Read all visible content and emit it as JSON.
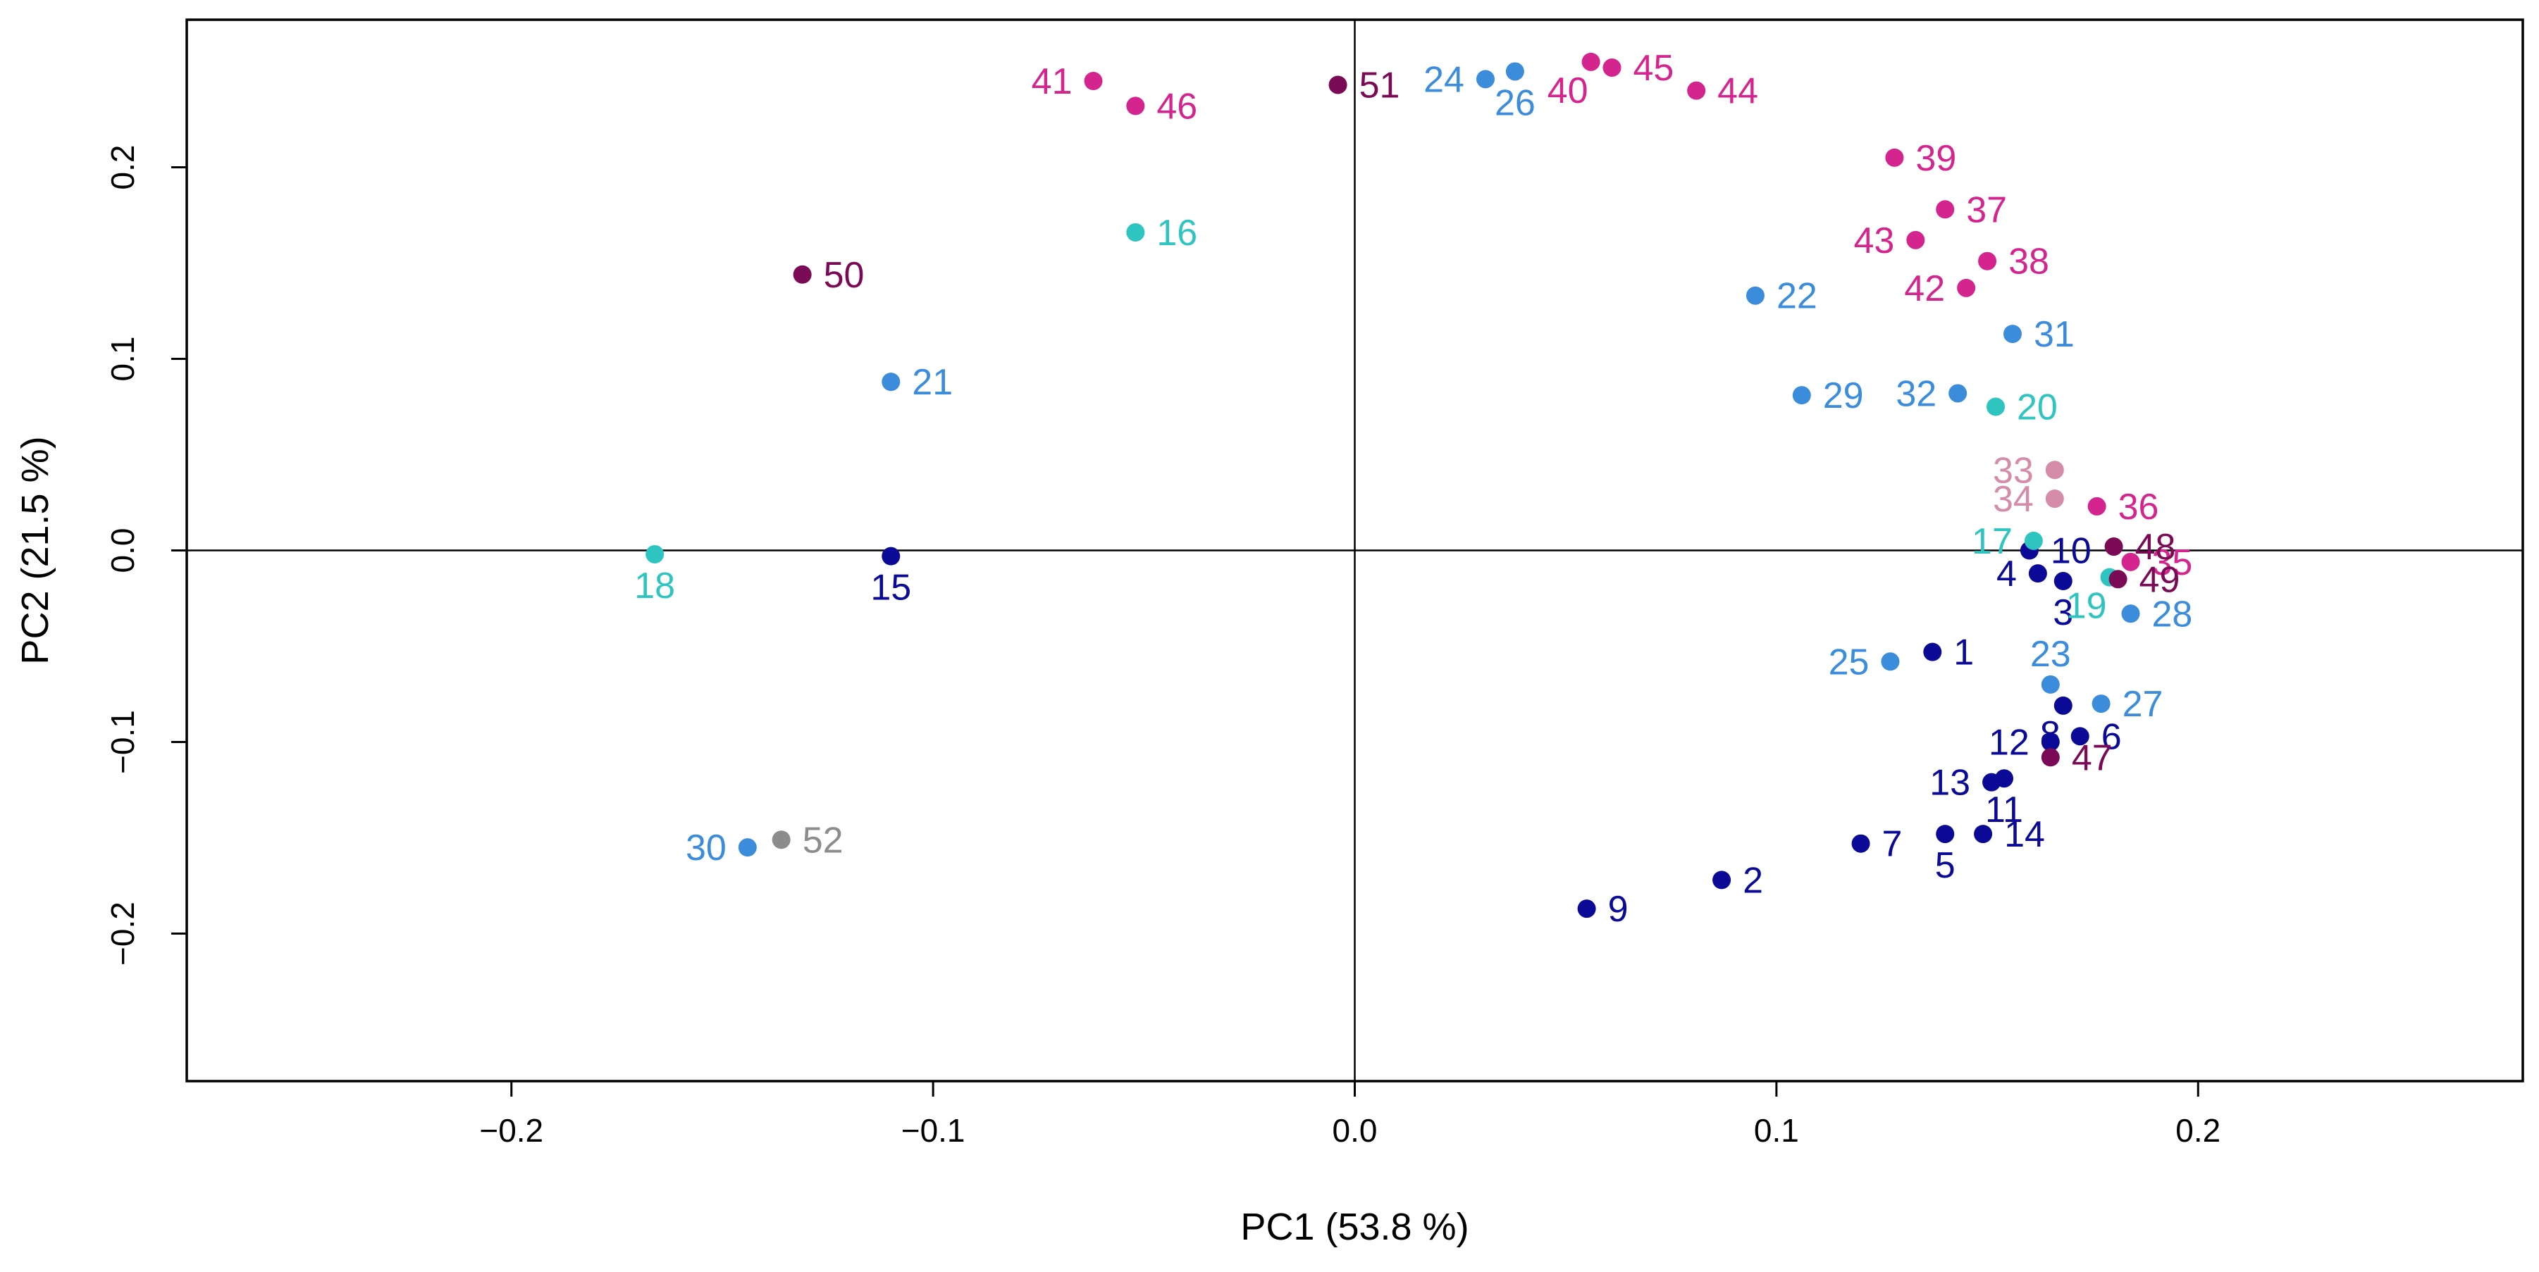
{
  "chart_data": {
    "type": "scatter",
    "title": "",
    "xlabel": "PC1 (53.8 %)",
    "ylabel": "PC2 (21.5 %)",
    "xlim": [
      -0.277,
      0.277
    ],
    "ylim": [
      -0.277,
      0.277
    ],
    "x_ticks": [
      -0.2,
      -0.1,
      0.0,
      0.1,
      0.2
    ],
    "x_tick_labels": [
      "−0.2",
      "−0.1",
      "0.0",
      "0.1",
      "0.2"
    ],
    "y_ticks": [
      -0.2,
      -0.1,
      0.0,
      0.1,
      0.2
    ],
    "y_tick_labels": [
      "−0.2",
      "−0.1",
      "0.0",
      "0.1",
      "0.2"
    ],
    "reference_lines": {
      "x": 0,
      "y": 0
    },
    "colors": {
      "navy": "#0a0a96",
      "sky": "#3c8cdc",
      "teal": "#2ec4c0",
      "magenta": "#d4258f",
      "plum": "#7a0a55",
      "rose": "#d48ca8",
      "gray": "#8c8c8c"
    },
    "points": [
      {
        "id": "1",
        "x": 0.137,
        "y": -0.053,
        "color": "navy",
        "pos": "right"
      },
      {
        "id": "2",
        "x": 0.087,
        "y": -0.172,
        "color": "navy",
        "pos": "right"
      },
      {
        "id": "3",
        "x": 0.168,
        "y": -0.016,
        "color": "navy",
        "pos": "below"
      },
      {
        "id": "4",
        "x": 0.162,
        "y": -0.012,
        "color": "navy",
        "pos": "left"
      },
      {
        "id": "5",
        "x": 0.14,
        "y": -0.148,
        "color": "navy",
        "pos": "below"
      },
      {
        "id": "6",
        "x": 0.172,
        "y": -0.097,
        "color": "navy",
        "pos": "right"
      },
      {
        "id": "7",
        "x": 0.12,
        "y": -0.153,
        "color": "navy",
        "pos": "right"
      },
      {
        "id": "8",
        "x": 0.168,
        "y": -0.081,
        "color": "navy",
        "pos": "belowleft"
      },
      {
        "id": "9",
        "x": 0.055,
        "y": -0.187,
        "color": "navy",
        "pos": "right"
      },
      {
        "id": "10",
        "x": 0.16,
        "y": 0.0,
        "color": "navy",
        "pos": "right"
      },
      {
        "id": "11",
        "x": 0.154,
        "y": -0.119,
        "color": "navy",
        "pos": "below"
      },
      {
        "id": "12",
        "x": 0.165,
        "y": -0.1,
        "color": "navy",
        "pos": "left"
      },
      {
        "id": "13",
        "x": 0.151,
        "y": -0.121,
        "color": "navy",
        "pos": "left"
      },
      {
        "id": "14",
        "x": 0.149,
        "y": -0.148,
        "color": "navy",
        "pos": "right"
      },
      {
        "id": "15",
        "x": -0.11,
        "y": -0.003,
        "color": "navy",
        "pos": "below"
      },
      {
        "id": "16",
        "x": -0.052,
        "y": 0.166,
        "color": "teal",
        "pos": "right"
      },
      {
        "id": "17",
        "x": 0.161,
        "y": 0.005,
        "color": "teal",
        "pos": "left"
      },
      {
        "id": "18",
        "x": -0.166,
        "y": -0.002,
        "color": "teal",
        "pos": "below"
      },
      {
        "id": "19",
        "x": 0.179,
        "y": -0.014,
        "color": "teal",
        "pos": "belowleft"
      },
      {
        "id": "20",
        "x": 0.152,
        "y": 0.075,
        "color": "teal",
        "pos": "right"
      },
      {
        "id": "21",
        "x": -0.11,
        "y": 0.088,
        "color": "sky",
        "pos": "right"
      },
      {
        "id": "22",
        "x": 0.095,
        "y": 0.133,
        "color": "sky",
        "pos": "right"
      },
      {
        "id": "23",
        "x": 0.165,
        "y": -0.07,
        "color": "sky",
        "pos": "above"
      },
      {
        "id": "24",
        "x": 0.031,
        "y": 0.246,
        "color": "sky",
        "pos": "left"
      },
      {
        "id": "25",
        "x": 0.127,
        "y": -0.058,
        "color": "sky",
        "pos": "left"
      },
      {
        "id": "26",
        "x": 0.038,
        "y": 0.25,
        "color": "sky",
        "pos": "below"
      },
      {
        "id": "27",
        "x": 0.177,
        "y": -0.08,
        "color": "sky",
        "pos": "right"
      },
      {
        "id": "28",
        "x": 0.184,
        "y": -0.033,
        "color": "sky",
        "pos": "right"
      },
      {
        "id": "29",
        "x": 0.106,
        "y": 0.081,
        "color": "sky",
        "pos": "right"
      },
      {
        "id": "30",
        "x": -0.144,
        "y": -0.155,
        "color": "sky",
        "pos": "left"
      },
      {
        "id": "31",
        "x": 0.156,
        "y": 0.113,
        "color": "sky",
        "pos": "right"
      },
      {
        "id": "32",
        "x": 0.143,
        "y": 0.082,
        "color": "sky",
        "pos": "left"
      },
      {
        "id": "33",
        "x": 0.166,
        "y": 0.042,
        "color": "rose",
        "pos": "left"
      },
      {
        "id": "34",
        "x": 0.166,
        "y": 0.027,
        "color": "rose",
        "pos": "left"
      },
      {
        "id": "35",
        "x": 0.184,
        "y": -0.006,
        "color": "magenta",
        "pos": "right"
      },
      {
        "id": "36",
        "x": 0.176,
        "y": 0.023,
        "color": "magenta",
        "pos": "right"
      },
      {
        "id": "37",
        "x": 0.14,
        "y": 0.178,
        "color": "magenta",
        "pos": "right"
      },
      {
        "id": "38",
        "x": 0.15,
        "y": 0.151,
        "color": "magenta",
        "pos": "right"
      },
      {
        "id": "39",
        "x": 0.128,
        "y": 0.205,
        "color": "magenta",
        "pos": "right"
      },
      {
        "id": "40",
        "x": 0.056,
        "y": 0.255,
        "color": "magenta",
        "pos": "belowleft"
      },
      {
        "id": "41",
        "x": -0.062,
        "y": 0.245,
        "color": "magenta",
        "pos": "left"
      },
      {
        "id": "42",
        "x": 0.145,
        "y": 0.137,
        "color": "magenta",
        "pos": "left"
      },
      {
        "id": "43",
        "x": 0.133,
        "y": 0.162,
        "color": "magenta",
        "pos": "left"
      },
      {
        "id": "44",
        "x": 0.081,
        "y": 0.24,
        "color": "magenta",
        "pos": "right"
      },
      {
        "id": "45",
        "x": 0.061,
        "y": 0.252,
        "color": "magenta",
        "pos": "right"
      },
      {
        "id": "46",
        "x": -0.052,
        "y": 0.232,
        "color": "magenta",
        "pos": "right"
      },
      {
        "id": "47",
        "x": 0.165,
        "y": -0.108,
        "color": "plum",
        "pos": "right"
      },
      {
        "id": "48",
        "x": 0.18,
        "y": 0.002,
        "color": "plum",
        "pos": "right"
      },
      {
        "id": "49",
        "x": 0.181,
        "y": -0.015,
        "color": "plum",
        "pos": "right"
      },
      {
        "id": "50",
        "x": -0.131,
        "y": 0.144,
        "color": "plum",
        "pos": "right"
      },
      {
        "id": "51",
        "x": -0.004,
        "y": 0.243,
        "color": "plum",
        "pos": "right"
      },
      {
        "id": "52",
        "x": -0.136,
        "y": -0.151,
        "color": "gray",
        "pos": "right"
      }
    ]
  }
}
